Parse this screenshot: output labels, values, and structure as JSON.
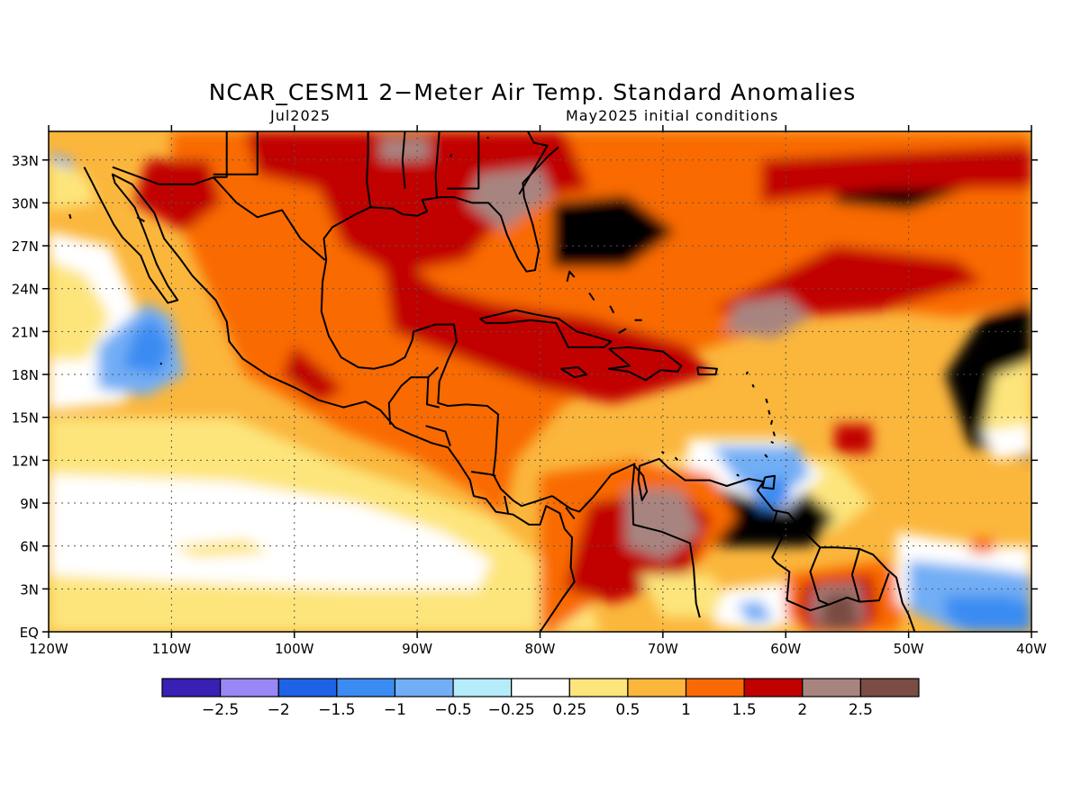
{
  "header": {
    "title": "NCAR_CESM1 2−Meter Air Temp. Standard Anomalies",
    "valid_month": "Jul2025",
    "init_conditions": "May2025 initial conditions"
  },
  "map": {
    "lon_range": [
      -120,
      -40
    ],
    "lat_range": [
      0,
      35
    ],
    "lat_ticks": [
      {
        "value": 33,
        "label": "33N"
      },
      {
        "value": 30,
        "label": "30N"
      },
      {
        "value": 27,
        "label": "27N"
      },
      {
        "value": 24,
        "label": "24N"
      },
      {
        "value": 21,
        "label": "21N"
      },
      {
        "value": 18,
        "label": "18N"
      },
      {
        "value": 15,
        "label": "15N"
      },
      {
        "value": 12,
        "label": "12N"
      },
      {
        "value": 9,
        "label": "9N"
      },
      {
        "value": 6,
        "label": "6N"
      },
      {
        "value": 3,
        "label": "3N"
      },
      {
        "value": 0,
        "label": "EQ"
      }
    ],
    "lon_ticks": [
      {
        "value": -120,
        "label": "120W"
      },
      {
        "value": -110,
        "label": "110W"
      },
      {
        "value": -100,
        "label": "100W"
      },
      {
        "value": -90,
        "label": "90W"
      },
      {
        "value": -80,
        "label": "80W"
      },
      {
        "value": -70,
        "label": "70W"
      },
      {
        "value": -60,
        "label": "60W"
      },
      {
        "value": -50,
        "label": "50W"
      },
      {
        "value": -40,
        "label": "40W"
      }
    ],
    "gridlines": true
  },
  "colorbar": {
    "colors": [
      "#3a1fb4",
      "#9a87f5",
      "#1f62e6",
      "#3a8cf2",
      "#72aef5",
      "#b4ecfa",
      "#ffffff",
      "#fde57c",
      "#fbb63c",
      "#f96a06",
      "#c10000",
      "#a88480",
      "#7a4c43"
    ],
    "labels": [
      "−2.5",
      "−2",
      "−1.5",
      "−1",
      "−0.5",
      "−0.25",
      "0.25",
      "0.5",
      "1",
      "1.5",
      "2",
      "2.5"
    ]
  },
  "anomaly_colors": {
    "background": "#fbb63c",
    "n_0_25": "#ffffff",
    "n_0_5": "#72aef5",
    "n_1": "#3a8cf2",
    "p_0_25": "#fde57c",
    "p_1": "#f96a06",
    "p_1_5": "#c10000",
    "p_2": "#a88480",
    "p_2_5": "#7a4c43",
    "coast": "#000000"
  }
}
